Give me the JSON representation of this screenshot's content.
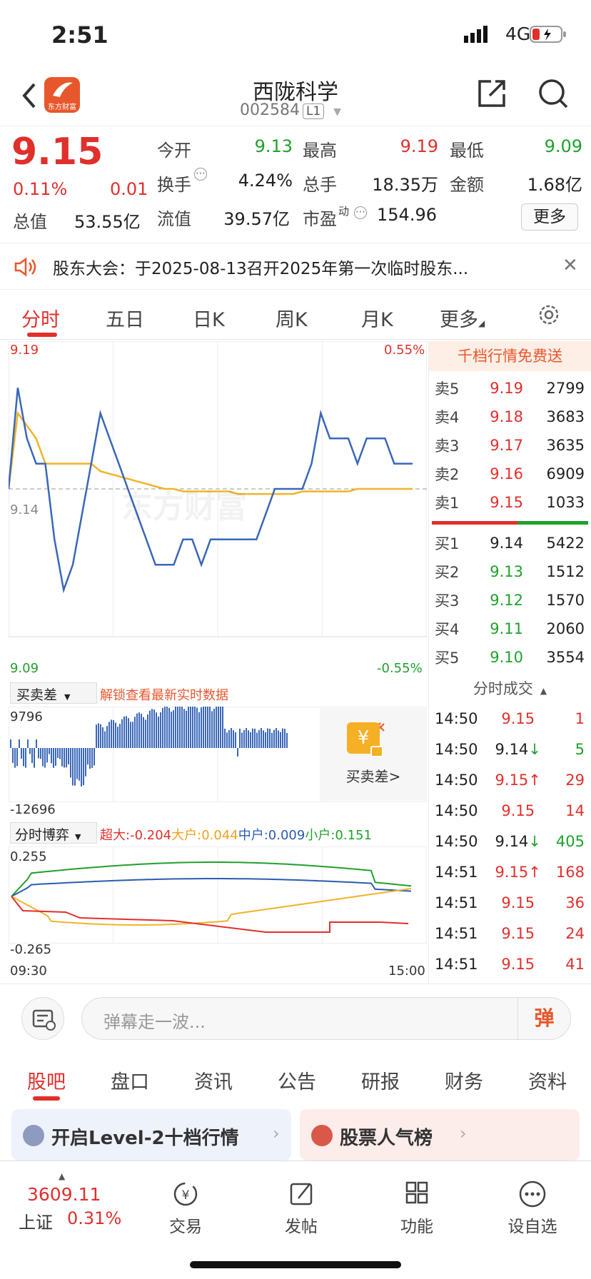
{
  "status": {
    "time": "2:51",
    "network": "4G"
  },
  "header": {
    "title": "西陇科学",
    "code": "002584",
    "level": "L1",
    "logo_text": "东方财富"
  },
  "quote": {
    "price": "9.15",
    "pct": "0.11%",
    "chg": "0.01",
    "rows": [
      [
        {
          "k": "今开",
          "v": "9.13",
          "c": "green"
        },
        {
          "k": "最高",
          "v": "9.19",
          "c": "red"
        },
        {
          "k": "最低",
          "v": "9.09",
          "c": "green"
        }
      ],
      [
        {
          "k": "换手",
          "v": "4.24%",
          "c": "dark"
        },
        {
          "k": "总手",
          "v": "18.35万",
          "c": "dark"
        },
        {
          "k": "金额",
          "v": "1.68亿",
          "c": "dark"
        }
      ],
      [
        {
          "k": "总值",
          "v": "53.55亿",
          "c": "dark"
        },
        {
          "k": "流值",
          "v": "39.57亿",
          "c": "dark"
        },
        {
          "k": "市盈",
          "sup": "动",
          "v": "154.96",
          "c": "dark"
        }
      ]
    ],
    "more": "更多"
  },
  "notice": {
    "text": "股东大会：于2025-08-13召开2025年第一次临时股东..."
  },
  "tabs": [
    "分时",
    "五日",
    "日K",
    "周K",
    "月K",
    "更多"
  ],
  "chart": {
    "price_high": "9.19",
    "price_low": "9.09",
    "price_mid": "9.14",
    "pct_high": "0.55%",
    "pct_low": "-0.55%",
    "watermark": "东方财富",
    "diff_label": "买卖差",
    "unlock": "解锁查看最新实时数据",
    "diff_high": "9796",
    "diff_low": "-12696",
    "diff_btn": "买卖差>",
    "game_label": "分时博弈",
    "game_high": "0.255",
    "game_low": "-0.265",
    "t_start": "09:30",
    "t_end": "15:00",
    "legend": [
      {
        "k": "超大:",
        "v": "-0.204",
        "c": "#e0302c"
      },
      {
        "k": "大户:",
        "v": "0.044",
        "c": "#f0a020"
      },
      {
        "k": "中户:",
        "v": "0.009",
        "c": "#2b5cb0"
      },
      {
        "k": "小户:",
        "v": "0.151",
        "c": "#1fa12c"
      }
    ]
  },
  "chart_data": {
    "type": "line",
    "x_start": "09:30",
    "x_end": "15:00",
    "ylim": [
      9.09,
      9.19
    ],
    "price": [
      9.14,
      9.18,
      9.16,
      9.15,
      9.15,
      9.12,
      9.1,
      9.11,
      9.13,
      9.15,
      9.17,
      9.16,
      9.15,
      9.14,
      9.13,
      9.12,
      9.11,
      9.11,
      9.11,
      9.12,
      9.12,
      9.11,
      9.12,
      9.12,
      9.12,
      9.12,
      9.12,
      9.12,
      9.13,
      9.14,
      9.14,
      9.14,
      9.14,
      9.15,
      9.17,
      9.16,
      9.16,
      9.16,
      9.15,
      9.16,
      9.16,
      9.16,
      9.15,
      9.15,
      9.15
    ],
    "avg": [
      9.14,
      9.17,
      9.165,
      9.16,
      9.15,
      9.15,
      9.15,
      9.15,
      9.15,
      9.15,
      9.147,
      9.146,
      9.145,
      9.144,
      9.143,
      9.142,
      9.141,
      9.14,
      9.14,
      9.139,
      9.139,
      9.139,
      9.139,
      9.139,
      9.139,
      9.138,
      9.138,
      9.138,
      9.138,
      9.138,
      9.138,
      9.138,
      9.139,
      9.139,
      9.139,
      9.139,
      9.139,
      9.139,
      9.14,
      9.14,
      9.14,
      9.14,
      9.14,
      9.14,
      9.14
    ]
  },
  "orderbook": {
    "banner": "千档行情免费送",
    "sells": [
      {
        "l": "卖5",
        "p": "9.19",
        "v": "2799",
        "c": "red"
      },
      {
        "l": "卖4",
        "p": "9.18",
        "v": "3683",
        "c": "red"
      },
      {
        "l": "卖3",
        "p": "9.17",
        "v": "3635",
        "c": "red"
      },
      {
        "l": "卖2",
        "p": "9.16",
        "v": "6909",
        "c": "red"
      },
      {
        "l": "卖1",
        "p": "9.15",
        "v": "1033",
        "c": "red"
      }
    ],
    "buys": [
      {
        "l": "买1",
        "p": "9.14",
        "v": "5422",
        "c": "dark"
      },
      {
        "l": "买2",
        "p": "9.13",
        "v": "1512",
        "c": "green"
      },
      {
        "l": "买3",
        "p": "9.12",
        "v": "1570",
        "c": "green"
      },
      {
        "l": "买4",
        "p": "9.11",
        "v": "2060",
        "c": "green"
      },
      {
        "l": "买5",
        "p": "9.10",
        "v": "3554",
        "c": "green"
      }
    ],
    "trades_title": "分时成交",
    "trades": [
      {
        "t": "14:50",
        "p": "9.15",
        "a": "",
        "v": "1",
        "pc": "red",
        "vc": "red"
      },
      {
        "t": "14:50",
        "p": "9.14",
        "a": "↓",
        "v": "5",
        "pc": "dark",
        "vc": "green"
      },
      {
        "t": "14:50",
        "p": "9.15",
        "a": "↑",
        "v": "29",
        "pc": "red",
        "vc": "red"
      },
      {
        "t": "14:50",
        "p": "9.15",
        "a": "",
        "v": "14",
        "pc": "red",
        "vc": "red"
      },
      {
        "t": "14:50",
        "p": "9.14",
        "a": "↓",
        "v": "405",
        "pc": "dark",
        "vc": "green"
      },
      {
        "t": "14:51",
        "p": "9.15",
        "a": "↑",
        "v": "168",
        "pc": "red",
        "vc": "red"
      },
      {
        "t": "14:51",
        "p": "9.15",
        "a": "",
        "v": "36",
        "pc": "red",
        "vc": "red"
      },
      {
        "t": "14:51",
        "p": "9.15",
        "a": "",
        "v": "24",
        "pc": "red",
        "vc": "red"
      },
      {
        "t": "14:51",
        "p": "9.15",
        "a": "",
        "v": "41",
        "pc": "red",
        "vc": "red"
      }
    ]
  },
  "danmu": {
    "placeholder": "弹幕走一波...",
    "btn": "弹"
  },
  "bottom_tabs": [
    "股吧",
    "盘口",
    "资讯",
    "公告",
    "研报",
    "财务",
    "资料"
  ],
  "cards": [
    {
      "text": "开启Level-2十档行情"
    },
    {
      "text": "股票人气榜"
    }
  ],
  "index": {
    "value": "3609.11",
    "name": "上证",
    "pct": "0.31%"
  },
  "nav": [
    "交易",
    "发帖",
    "功能",
    "设自选"
  ]
}
